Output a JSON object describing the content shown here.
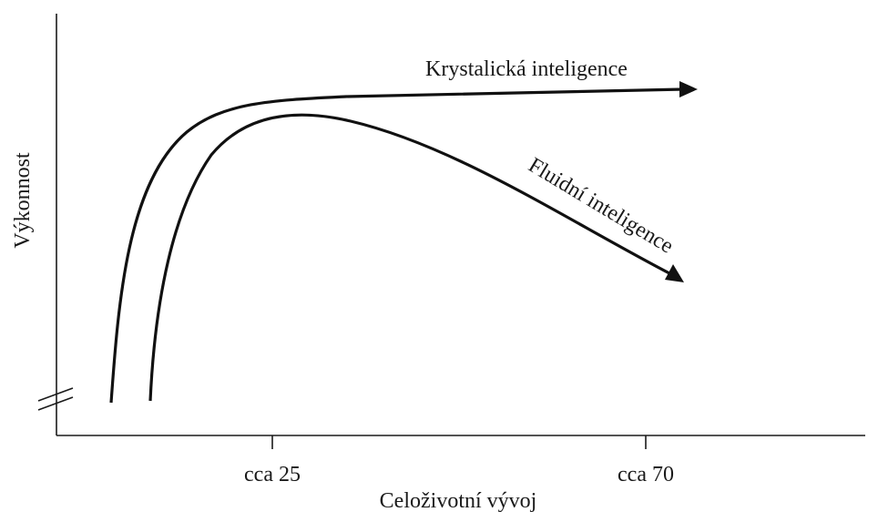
{
  "y_axis": {
    "label": "Výkonnost"
  },
  "x_axis": {
    "label": "Celoživotní vývoj",
    "ticks": [
      "cca 25",
      "cca 70"
    ]
  },
  "curves": [
    {
      "label": "Krystalická inteligence"
    },
    {
      "label": "Fluidní inteligence"
    }
  ]
}
